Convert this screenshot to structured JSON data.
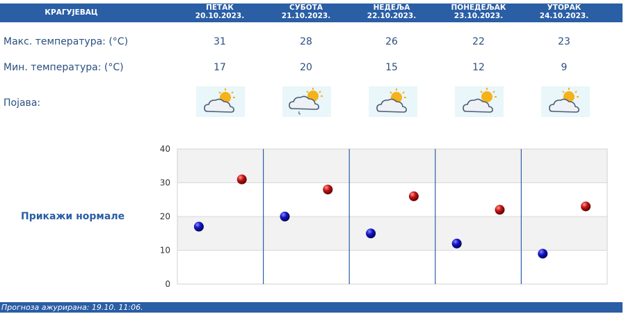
{
  "header": {
    "city": "КРАГУЈЕВАЦ",
    "days": [
      {
        "name": "ПЕТАК",
        "date": "20.10.2023."
      },
      {
        "name": "СУБОТА",
        "date": "21.10.2023."
      },
      {
        "name": "НЕДЕЉА",
        "date": "22.10.2023."
      },
      {
        "name": "ПОНЕДЕЉАК",
        "date": "23.10.2023."
      },
      {
        "name": "УТОРАК",
        "date": "24.10.2023."
      }
    ]
  },
  "rows": {
    "max_label": "Макс. температура: (°C)",
    "min_label": "Мин. температура: (°C)",
    "phenomenon_label": "Појава:",
    "max_values": [
      "31",
      "28",
      "26",
      "22",
      "23"
    ],
    "min_values": [
      "17",
      "20",
      "15",
      "12",
      "9"
    ],
    "icons": [
      "partly-cloudy-icon",
      "partly-cloudy-rain-icon",
      "partly-cloudy-icon",
      "partly-cloudy-icon",
      "partly-cloudy-icon"
    ]
  },
  "normals_link": "Прикажи нормале",
  "footer": {
    "updated": "Прогноза ажурирана:  19.10. 11:06."
  },
  "colors": {
    "header_bg": "#2a5ea5",
    "min_marker": "#1010c0",
    "max_marker": "#c01010",
    "divider": "#2a5ea5"
  },
  "chart_data": {
    "type": "scatter",
    "y_ticks": [
      "0",
      "10",
      "20",
      "30",
      "40"
    ],
    "ylim": [
      0,
      40
    ],
    "grid": true,
    "categories": [
      "20.10.2023.",
      "21.10.2023.",
      "22.10.2023.",
      "23.10.2023.",
      "24.10.2023."
    ],
    "series": [
      {
        "values": [
          17,
          20,
          15,
          12,
          9
        ],
        "color": "#1010c0"
      },
      {
        "values": [
          31,
          28,
          26,
          22,
          23
        ],
        "color": "#c01010"
      }
    ]
  }
}
